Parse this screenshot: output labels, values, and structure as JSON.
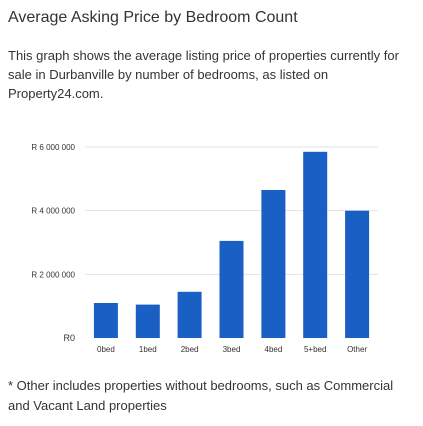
{
  "header": {
    "title": "Average Asking Price by Bedroom Count",
    "description": "This graph shows the average listing price of properties currently for sale in Durbanville by number of bedrooms, as listed on Property24.com."
  },
  "chart_data": {
    "type": "bar",
    "title": "",
    "xlabel": "",
    "ylabel": "",
    "categories": [
      "0bed",
      "1bed",
      "2bed",
      "3bed",
      "4bed",
      "5+bed",
      "Other"
    ],
    "values": [
      1100000,
      1050000,
      1450000,
      3050000,
      4650000,
      5850000,
      4000000
    ],
    "ylim": [
      0,
      6000000
    ],
    "yticks": [
      0,
      2000000,
      4000000,
      6000000
    ],
    "ytick_labels": [
      "R0",
      "R 2 000 000",
      "R 4 000 000",
      "R 6 000 000"
    ],
    "grid": true,
    "legend": "none",
    "colors": {
      "bar": "#1a5fc4",
      "grid": "#e3e3e3",
      "tick_text": "#333333"
    }
  },
  "footnote": {
    "text": "* Other includes properties without bedrooms, such as Commercial and Vacant Land properties"
  }
}
